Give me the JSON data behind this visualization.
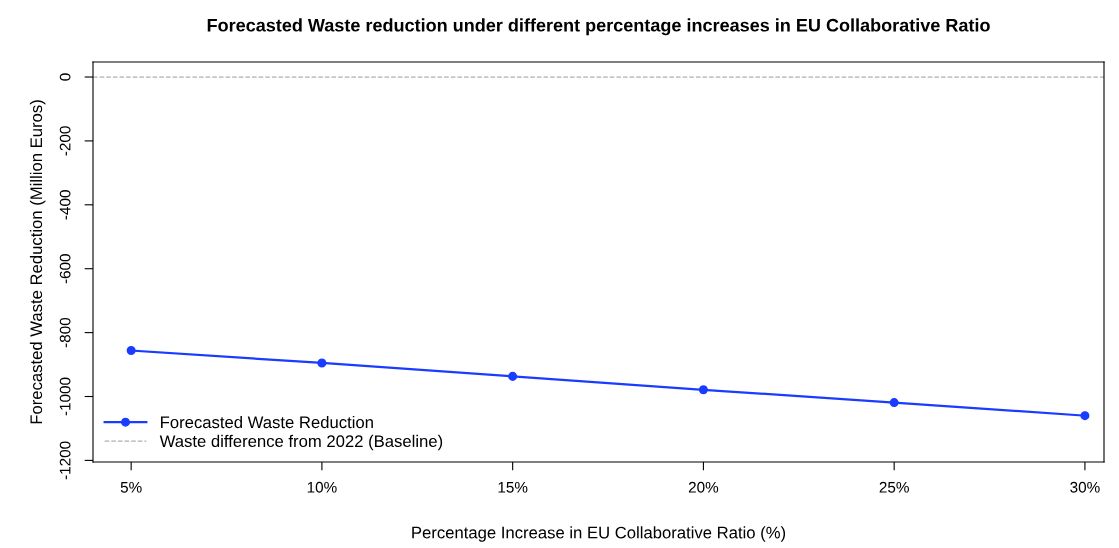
{
  "chart_data": {
    "type": "line",
    "title": "Forecasted Waste reduction under different percentage increases in EU Collaborative Ratio",
    "xlabel": "Percentage Increase in EU Collaborative Ratio (%)",
    "ylabel": "Forecasted Waste Reduction (Million Euros)",
    "x": [
      5,
      10,
      15,
      20,
      25,
      30
    ],
    "series": [
      {
        "name": "Forecasted Waste Reduction",
        "color": "#1a3cff",
        "values": [
          -856,
          -895,
          -937,
          -979,
          -1019,
          -1060
        ]
      }
    ],
    "xlim": [
      4,
      30.5
    ],
    "xticks": [
      {
        "value": 5,
        "label": "5%"
      },
      {
        "value": 10,
        "label": "10%"
      },
      {
        "value": 15,
        "label": "15%"
      },
      {
        "value": 20,
        "label": "20%"
      },
      {
        "value": 25,
        "label": "25%"
      },
      {
        "value": 30,
        "label": "30%"
      }
    ],
    "ylim": [
      -1205,
      47
    ],
    "yticks": [
      0,
      -200,
      -400,
      -600,
      -800,
      -1000,
      -1200
    ],
    "ref_lines": [
      {
        "axis": "y",
        "value": 0,
        "label": "Waste difference from 2022 (Baseline)",
        "color": "#b0b0b0",
        "line_style": "dashed"
      }
    ],
    "marker": "circle",
    "line_style": "solid",
    "legend": "bottom left",
    "grid": false
  }
}
